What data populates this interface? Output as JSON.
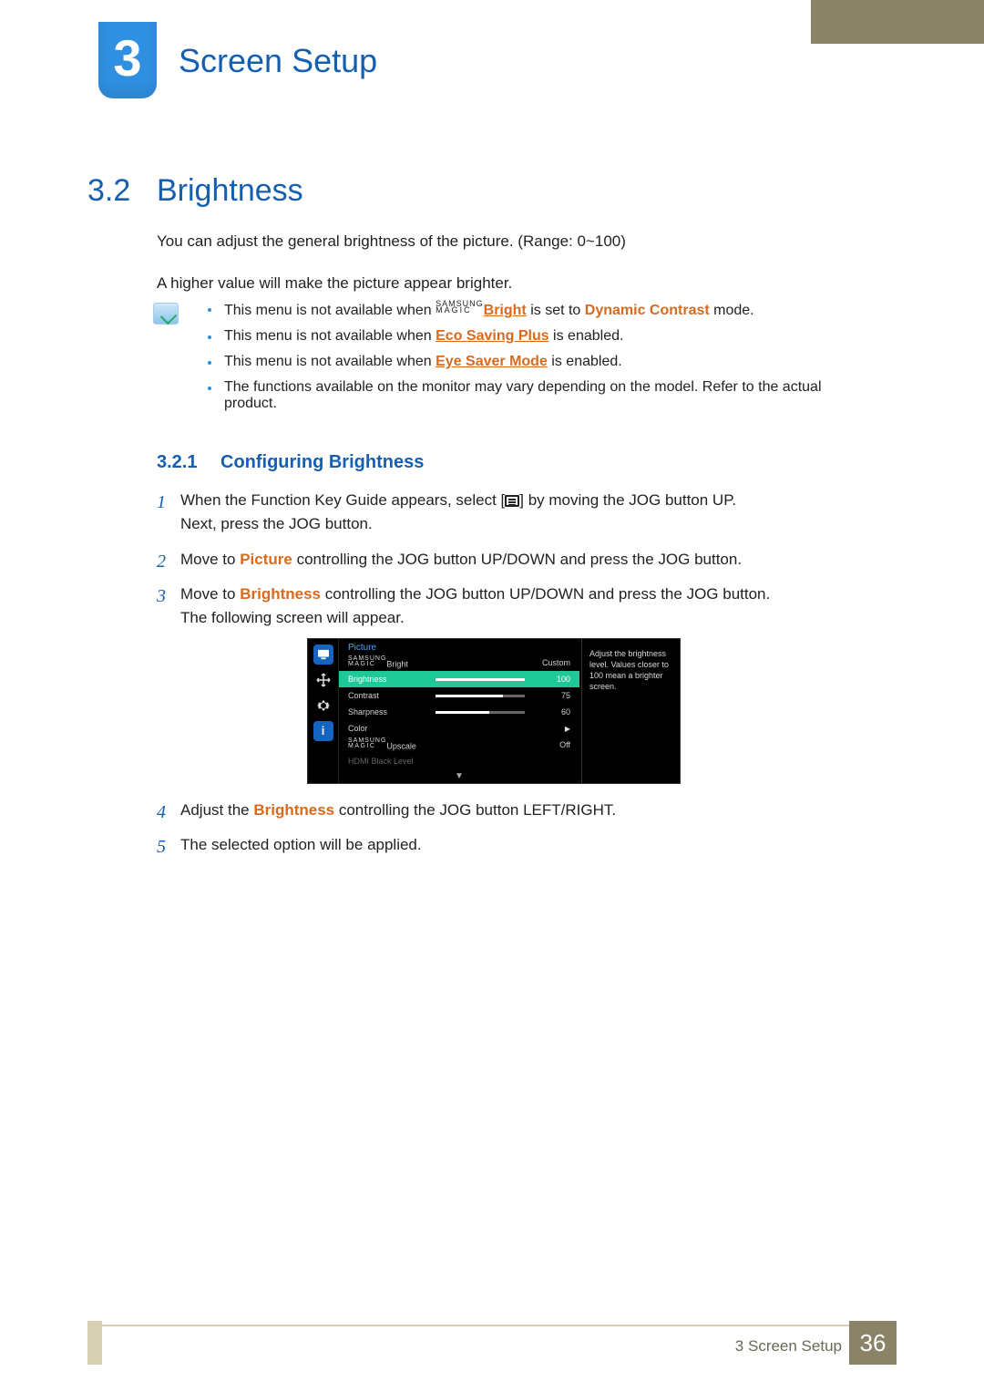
{
  "colors": {
    "blue": "#155fb0",
    "blue_badge": "#2f8fe0",
    "orange": "#d86a1e",
    "khaki_dark": "#8a8365",
    "khaki_light": "#d6cfb4",
    "osd_highlight": "#1fc997",
    "osd_title": "#4aa3ff"
  },
  "chapter": {
    "number": "3",
    "title": "Screen Setup"
  },
  "section": {
    "number": "3.2",
    "title": "Brightness"
  },
  "intro": {
    "p1": "You can adjust the general brightness of the picture. (Range: 0~100)",
    "p2": "A higher value will make the picture appear brighter."
  },
  "notes": [
    {
      "pre": "This menu is not available when ",
      "magic": true,
      "kw": "Bright",
      "mid": " is set to ",
      "kw2": "Dynamic Contrast",
      "post": " mode."
    },
    {
      "pre": "This menu is not available when ",
      "kw_u": "Eco Saving Plus",
      "post": " is enabled."
    },
    {
      "pre": "This menu is not available when ",
      "kw_u": "Eye Saver Mode",
      "post": " is enabled."
    },
    {
      "pre": "The functions available on the monitor may vary depending on the model. Refer to the actual product."
    }
  ],
  "subsection": {
    "number": "3.2.1",
    "title": "Configuring Brightness"
  },
  "steps_a": [
    {
      "n": "1",
      "text_a": "When the Function Key Guide appears, select [",
      "text_b": "] by moving the JOG button UP.",
      "text_c": "Next, press the JOG button."
    },
    {
      "n": "2",
      "text_a": "Move to ",
      "kw": "Picture",
      "text_b": " controlling the JOG button UP/DOWN and press the JOG button."
    },
    {
      "n": "3",
      "text_a": "Move to ",
      "kw": "Brightness",
      "text_b": " controlling the JOG button UP/DOWN and press the JOG button.",
      "text_c": "The following screen will appear."
    }
  ],
  "osd": {
    "title": "Picture",
    "tooltip": "Adjust the brightness level. Values closer to 100 mean a brighter screen.",
    "rows": [
      {
        "label_magic": true,
        "label": "Bright",
        "value_text": "Custom"
      },
      {
        "label": "Brightness",
        "bar": 100,
        "value": "100",
        "selected": true
      },
      {
        "label": "Contrast",
        "bar": 75,
        "value": "75"
      },
      {
        "label": "Sharpness",
        "bar": 60,
        "value": "60"
      },
      {
        "label": "Color",
        "arrow": true
      },
      {
        "label_magic": true,
        "label": "Upscale",
        "value_text": "Off"
      },
      {
        "label": "HDMI Black Level",
        "dim": true
      }
    ]
  },
  "steps_b": [
    {
      "n": "4",
      "text_a": "Adjust the ",
      "kw": "Brightness",
      "text_b": " controlling the JOG button LEFT/RIGHT."
    },
    {
      "n": "5",
      "text_a": "The selected option will be applied."
    }
  ],
  "footer": {
    "label": "3 Screen Setup",
    "page": "36"
  }
}
